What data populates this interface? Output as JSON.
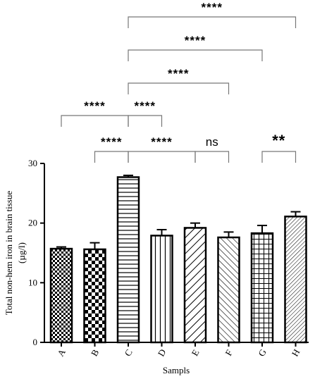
{
  "chart_data": {
    "type": "bar",
    "xlabel": "Sampls",
    "ylabel_lines": [
      "Total non-hem iron in brain tissue",
      "(µg/l)"
    ],
    "ylim": [
      0,
      30
    ],
    "yticks": [
      "0",
      "10",
      "20",
      "30"
    ],
    "categories": [
      "A",
      "B",
      "C",
      "D",
      "E",
      "F",
      "G",
      "H"
    ],
    "values": [
      15.7,
      15.6,
      27.7,
      17.9,
      19.2,
      17.6,
      18.3,
      21.1
    ],
    "errors": [
      0.3,
      1.1,
      0.3,
      1.0,
      0.8,
      0.9,
      1.3,
      0.8
    ],
    "patterns": [
      "checker-small",
      "checker-large",
      "horizontal",
      "vertical",
      "diag-wide",
      "diag-back",
      "grid",
      "diag-fine"
    ],
    "significance": [
      {
        "from": "A",
        "to": "C",
        "label": "****"
      },
      {
        "from": "B",
        "to": "C",
        "label": "****"
      },
      {
        "from": "C",
        "to": "D",
        "label": "****"
      },
      {
        "from": "C",
        "to": "E",
        "label": "****"
      },
      {
        "from": "C",
        "to": "F",
        "label": "****"
      },
      {
        "from": "C",
        "to": "G",
        "label": "****"
      },
      {
        "from": "C",
        "to": "H",
        "label": "****"
      },
      {
        "from": "E",
        "to": "F",
        "label": "ns"
      },
      {
        "from": "G",
        "to": "H",
        "label": "**"
      }
    ],
    "grid": false,
    "legend": "none"
  }
}
